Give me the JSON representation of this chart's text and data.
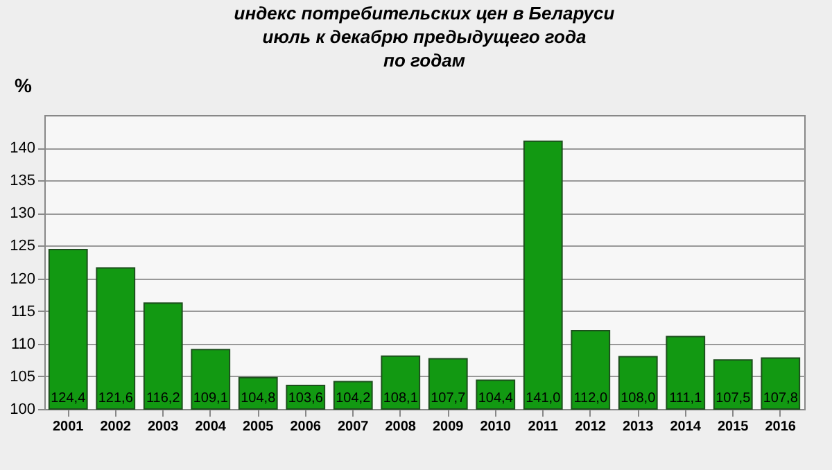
{
  "chart_data": {
    "type": "bar",
    "title": "индекс потребительских цен в Беларуси\nиюль к декабрю предыдущего года\nпо годам",
    "ylabel": "%",
    "categories": [
      "2001",
      "2002",
      "2003",
      "2004",
      "2005",
      "2006",
      "2007",
      "2008",
      "2009",
      "2010",
      "2011",
      "2012",
      "2013",
      "2014",
      "2015",
      "2016"
    ],
    "values": [
      124.4,
      121.6,
      116.2,
      109.1,
      104.8,
      103.6,
      104.2,
      108.1,
      107.7,
      104.4,
      141.0,
      112.0,
      108.0,
      111.1,
      107.5,
      107.8
    ],
    "value_labels": [
      "124,4",
      "121,6",
      "116,2",
      "109,1",
      "104,8",
      "103,6",
      "104,2",
      "108,1",
      "107,7",
      "104,4",
      "141,0",
      "112,0",
      "108,0",
      "111,1",
      "107,5",
      "107,8"
    ],
    "color": "#129912",
    "ylim": [
      100,
      145
    ],
    "yticks": [
      100,
      105,
      110,
      115,
      120,
      125,
      130,
      135,
      140
    ],
    "grid": "y"
  }
}
